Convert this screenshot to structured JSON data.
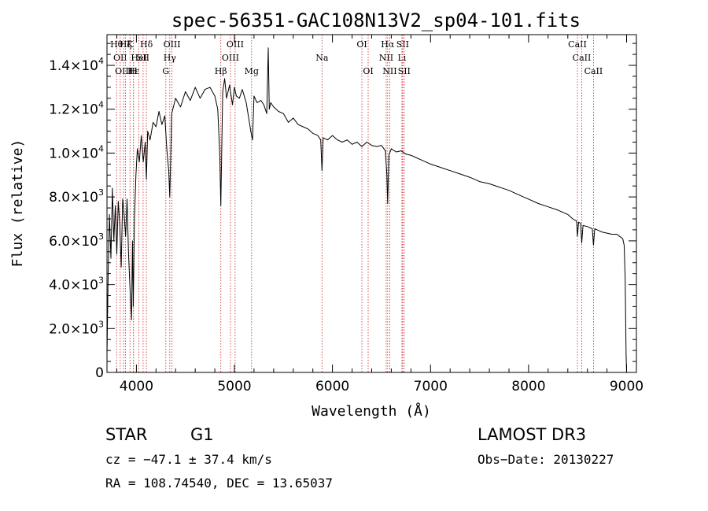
{
  "chart_data": {
    "type": "line",
    "title": "spec-56351-GAC108N13V2_sp04-101.fits",
    "xlabel": "Wavelength (Å)",
    "ylabel": "Flux (relative)",
    "xlim": [
      3700,
      9100
    ],
    "ylim": [
      0,
      15400
    ],
    "x_ticks": [
      {
        "value": 4000,
        "label": "4000"
      },
      {
        "value": 5000,
        "label": "5000"
      },
      {
        "value": 6000,
        "label": "6000"
      },
      {
        "value": 7000,
        "label": "7000"
      },
      {
        "value": 8000,
        "label": "8000"
      },
      {
        "value": 9000,
        "label": "9000"
      }
    ],
    "y_ticks": [
      {
        "value": 0,
        "mant": "0",
        "exp": ""
      },
      {
        "value": 2000,
        "mant": "2.0×10",
        "exp": "3"
      },
      {
        "value": 4000,
        "mant": "4.0×10",
        "exp": "3"
      },
      {
        "value": 6000,
        "mant": "6.0×10",
        "exp": "3"
      },
      {
        "value": 8000,
        "mant": "8.0×10",
        "exp": "3"
      },
      {
        "value": 10000,
        "mant": "1.0×10",
        "exp": "4"
      },
      {
        "value": 12000,
        "mant": "1.2×10",
        "exp": "4"
      },
      {
        "value": 14000,
        "mant": "1.4×10",
        "exp": "4"
      }
    ],
    "series": [
      {
        "name": "spectrum",
        "x": [
          3700,
          3712,
          3725,
          3740,
          3755,
          3770,
          3785,
          3800,
          3815,
          3830,
          3845,
          3860,
          3875,
          3890,
          3905,
          3920,
          3935,
          3950,
          3960,
          3968,
          3980,
          3995,
          4010,
          4030,
          4050,
          4070,
          4090,
          4102,
          4115,
          4140,
          4170,
          4200,
          4230,
          4260,
          4290,
          4310,
          4330,
          4340,
          4360,
          4400,
          4450,
          4500,
          4550,
          4600,
          4650,
          4700,
          4750,
          4800,
          4830,
          4850,
          4861,
          4880,
          4900,
          4920,
          4950,
          4980,
          5000,
          5020,
          5050,
          5080,
          5120,
          5167,
          5184,
          5200,
          5230,
          5270,
          5300,
          5330,
          5345,
          5355,
          5370,
          5400,
          5450,
          5500,
          5550,
          5600,
          5650,
          5700,
          5750,
          5800,
          5850,
          5880,
          5893,
          5905,
          5950,
          6000,
          6050,
          6100,
          6150,
          6200,
          6250,
          6300,
          6350,
          6400,
          6450,
          6500,
          6540,
          6555,
          6563,
          6575,
          6600,
          6650,
          6700,
          6750,
          6800,
          6850,
          6900,
          6950,
          7000,
          7100,
          7200,
          7300,
          7400,
          7500,
          7600,
          7700,
          7800,
          7900,
          8000,
          8100,
          8200,
          8300,
          8400,
          8450,
          8490,
          8498,
          8510,
          8530,
          8542,
          8555,
          8600,
          8650,
          8662,
          8675,
          8700,
          8750,
          8800,
          8850,
          8900,
          8930,
          8960,
          8975,
          8985,
          8995,
          9000
        ],
        "y": [
          800,
          4500,
          7200,
          5200,
          8400,
          6000,
          7600,
          5400,
          7800,
          6800,
          4800,
          7900,
          7200,
          6200,
          7900,
          5400,
          3800,
          2400,
          6000,
          3000,
          7000,
          9000,
          10200,
          9600,
          10800,
          9600,
          10500,
          8800,
          11000,
          10600,
          11400,
          11200,
          11900,
          11300,
          11700,
          10200,
          9200,
          8000,
          11800,
          12500,
          12100,
          12800,
          12400,
          13000,
          12500,
          12900,
          13000,
          12600,
          12000,
          10000,
          7600,
          12800,
          13400,
          12500,
          13100,
          12200,
          13000,
          12600,
          12500,
          12900,
          12300,
          11000,
          10600,
          12600,
          12300,
          12400,
          12200,
          11800,
          14800,
          12000,
          12300,
          12100,
          11900,
          11800,
          11400,
          11600,
          11300,
          11200,
          11100,
          10900,
          10800,
          10600,
          9200,
          10700,
          10600,
          10800,
          10600,
          10500,
          10600,
          10400,
          10500,
          10300,
          10500,
          10350,
          10300,
          10350,
          10100,
          9000,
          7700,
          9900,
          10200,
          10050,
          10100,
          9950,
          9900,
          9800,
          9700,
          9600,
          9500,
          9350,
          9200,
          9050,
          8900,
          8700,
          8600,
          8450,
          8300,
          8100,
          7900,
          7700,
          7550,
          7400,
          7200,
          7000,
          6900,
          6200,
          6850,
          6800,
          5900,
          6700,
          6650,
          6550,
          5800,
          6550,
          6500,
          6400,
          6350,
          6300,
          6300,
          6200,
          6100,
          5800,
          4300,
          800,
          0
        ]
      }
    ],
    "line_markers": [
      {
        "wl": 3798,
        "label": "Hθ",
        "row": 0
      },
      {
        "wl": 3835,
        "label": "OII",
        "row": 1
      },
      {
        "wl": 3869,
        "label": "OIII",
        "row": 2
      },
      {
        "wl": 3889,
        "label": "Hζ",
        "row": 0
      },
      {
        "wl": 3934,
        "label": "K",
        "row": 0
      },
      {
        "wl": 3970,
        "label": "Hε",
        "row": 2
      },
      {
        "wl": 3970,
        "label": "H",
        "row": 2
      },
      {
        "wl": 4026,
        "label": "HeI",
        "row": 1
      },
      {
        "wl": 4068,
        "label": "SII",
        "row": 1
      },
      {
        "wl": 4102,
        "label": "Hδ",
        "row": 0
      },
      {
        "wl": 4300,
        "label": "G",
        "row": 2
      },
      {
        "wl": 4340,
        "label": "Hγ",
        "row": 1
      },
      {
        "wl": 4363,
        "label": "OIII",
        "row": 0
      },
      {
        "wl": 4861,
        "label": "Hβ",
        "row": 2
      },
      {
        "wl": 4959,
        "label": "OIII",
        "row": 1
      },
      {
        "wl": 5007,
        "label": "OIII",
        "row": 0
      },
      {
        "wl": 5175,
        "label": "Mg",
        "row": 2
      },
      {
        "wl": 5893,
        "label": "Na",
        "row": 1
      },
      {
        "wl": 6300,
        "label": "OI",
        "row": 0
      },
      {
        "wl": 6364,
        "label": "OI",
        "row": 2
      },
      {
        "wl": 6548,
        "label": "NII",
        "row": 1
      },
      {
        "wl": 6563,
        "label": "Hα",
        "row": 0
      },
      {
        "wl": 6584,
        "label": "NII",
        "row": 2
      },
      {
        "wl": 6708,
        "label": "Li",
        "row": 1
      },
      {
        "wl": 6716,
        "label": "SII",
        "row": 0
      },
      {
        "wl": 6731,
        "label": "SII",
        "row": 2
      },
      {
        "wl": 8498,
        "label": "CaII",
        "row": 0
      },
      {
        "wl": 8542,
        "label": "CaII",
        "row": 1
      },
      {
        "wl": 8662,
        "label": "CaII",
        "row": 2
      }
    ]
  },
  "info": {
    "class_label": "STAR",
    "subclass": "G1",
    "survey": "LAMOST DR3",
    "cz": "cz = −47.1 ± 37.4 km/s",
    "obs_date": "Obs−Date: 20130227",
    "coords": "RA = 108.74540, DEC =  13.65037"
  },
  "colors": {
    "axis": "#000000",
    "spectrum": "#000000",
    "marker": "#cc2222",
    "background": "#ffffff"
  }
}
